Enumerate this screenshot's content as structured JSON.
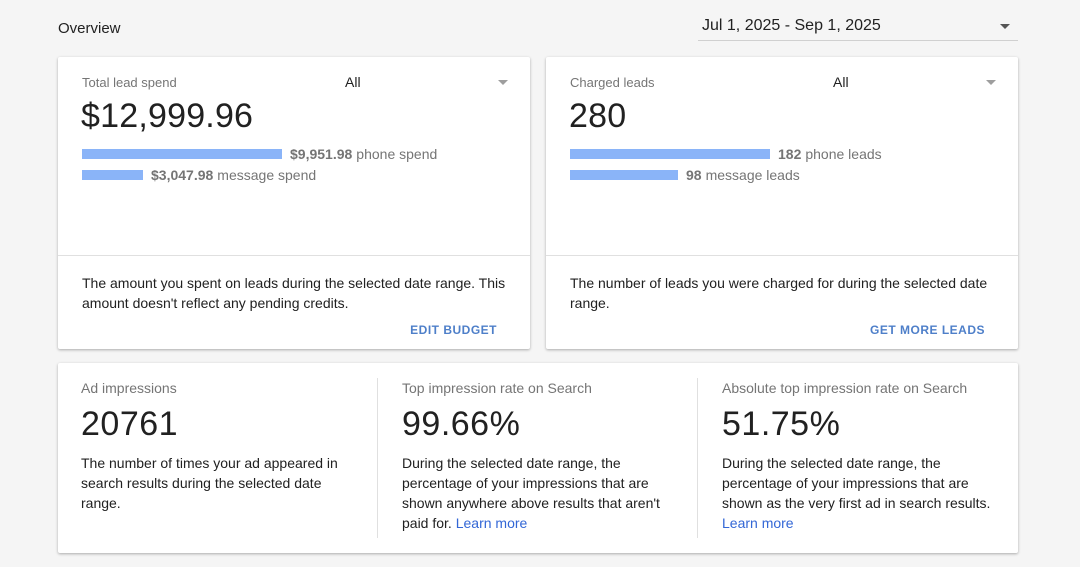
{
  "header": {
    "title": "Overview",
    "date_range": "Jul 1, 2025 - Sep 1, 2025"
  },
  "spend_card": {
    "label": "Total lead spend",
    "filter": "All",
    "value": "$12,999.96",
    "rows": [
      {
        "amount": "$9,951.98",
        "text": "phone spend",
        "fraction": 1.0
      },
      {
        "amount": "$3,047.98",
        "text": "message spend",
        "fraction": 0.306
      }
    ],
    "description": "The amount you spent on leads during the selected date range. This amount doesn't reflect any pending credits.",
    "action": "EDIT BUDGET"
  },
  "leads_card": {
    "label": "Charged leads",
    "filter": "All",
    "value": "280",
    "rows": [
      {
        "amount": "182",
        "text": "phone leads",
        "fraction": 1.0
      },
      {
        "amount": "98",
        "text": "message leads",
        "fraction": 0.538
      }
    ],
    "description": "The number of leads you were charged for during the selected date range.",
    "action": "GET MORE LEADS"
  },
  "metrics": [
    {
      "label": "Ad impressions",
      "value": "20761",
      "description": "The number of times your ad appeared in search results during the selected date range.",
      "link": ""
    },
    {
      "label": "Top impression rate on Search",
      "value": "99.66%",
      "description": "During the selected date range, the percentage of your impressions that are shown anywhere above results that aren't paid for.",
      "link": "Learn more"
    },
    {
      "label": "Absolute top impression rate on Search",
      "value": "51.75%",
      "description": "During the selected date range, the percentage of your impressions that are shown as the very first ad in search results.",
      "link": "Learn more"
    }
  ],
  "colors": {
    "bar": "#8ab4f8",
    "action": "#4e7fc9",
    "link": "#3367d6"
  }
}
